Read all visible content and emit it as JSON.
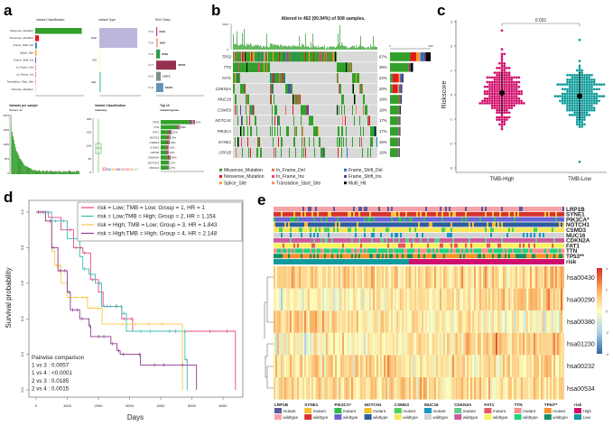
{
  "panels": {
    "a": "a",
    "b": "b",
    "c": "c",
    "d": "d",
    "e": "e"
  },
  "colors": {
    "Missense_Mutation": "#33a02c",
    "Nonsense_Mutation": "#e31a1c",
    "Splice_Site": "#ff9f1c",
    "In_Frame_Del": "#d9714e",
    "In_Frame_Ins": "#e8436f",
    "Translation_Start_Site": "#fb8a5a",
    "Frame_Shift_Del": "#1f78b4",
    "Frame_Shift_Ins": "#6a3d9a",
    "Multi_Hit": "#000000",
    "tmb_high": "#d10f6b",
    "tmb_low": "#0f9b9b",
    "km": [
      "#e8457e",
      "#3cbcb8",
      "#f7c948",
      "#8d3a8c"
    ]
  },
  "chart_data": [
    {
      "type": "bar",
      "title": "Variant Classification",
      "categories": [
        "Missense_Mutation",
        "Nonsense_Mutation",
        "Frame_Shift_Del",
        "Splice_Site",
        "Frame_Shift_Ins",
        "In_Frame_Del",
        "In_Frame_Ins",
        "Translation_Start_Site",
        "Nonstop_Mutation"
      ],
      "values": [
        86000,
        7000,
        3000,
        2500,
        1400,
        500,
        150,
        60,
        40
      ],
      "xlim": [
        0,
        90000
      ]
    },
    {
      "type": "bar",
      "title": "Variant Type",
      "categories": [
        "SNP",
        "INS",
        "DEL"
      ],
      "values": [
        86000,
        1500,
        3800
      ],
      "xlim": [
        0,
        90000
      ]
    },
    {
      "type": "bar",
      "title": "SNV Class",
      "categories": [
        "T>G",
        "T>A",
        "T>C",
        "C>T",
        "C>G",
        "C>A"
      ],
      "values": [
        2449,
        3697,
        8769,
        45255,
        10372,
        16216
      ]
    },
    {
      "type": "bar",
      "title": "Variants per sample",
      "subtitle": "Median: 92",
      "yticks": [
        "2013",
        "1510",
        "1006",
        "503",
        "0"
      ]
    },
    {
      "type": "box",
      "title": "Variant Classification",
      "subtitle": "summary",
      "yticks": [
        "200",
        "150",
        "100",
        "50",
        "0"
      ]
    },
    {
      "type": "bar",
      "title": "Top 10",
      "subtitle": "mutated genes",
      "genes": [
        "TP53",
        "TTN",
        "FAT1",
        "MUC16",
        "CSMD3",
        "SYNE1",
        "LRP1B",
        "CDKN2A",
        "NOTCH1",
        "PIK3CA"
      ],
      "labels": [
        "67%",
        "38%",
        "22%",
        "19%",
        "18%",
        "16%",
        "16%",
        "20%",
        "17%",
        "17%"
      ],
      "values": [
        67,
        38,
        22,
        19,
        18,
        16,
        16,
        20,
        17,
        17
      ]
    },
    {
      "type": "heatmap",
      "title": "Altered in 462 (90.94%) of 508 samples.",
      "top_axis": [
        "2013",
        "0"
      ],
      "side_axis": [
        "0",
        "340"
      ],
      "genes": [
        "TP53",
        "TTN",
        "FAT1",
        "CDKN2A",
        "MUC16",
        "CSMD3",
        "NOTCH1",
        "PIK3CA",
        "SYNE1",
        "LRP1B"
      ],
      "labels": [
        "67%",
        "38%",
        "22%",
        "20%",
        "19%",
        "18%",
        "17%",
        "17%",
        "16%",
        "16%"
      ],
      "values": [
        67,
        38,
        22,
        20,
        19,
        18,
        17,
        17,
        16,
        16
      ],
      "legend": [
        "Missense_Mutation",
        "Nonsense_Mutation",
        "Splice_Site",
        "In_Frame_Del",
        "In_Frame_Ins",
        "Translation_Start_Site",
        "Frame_Shift_Del",
        "Frame_Shift_Ins",
        "Multi_Hit"
      ]
    },
    {
      "type": "scatter",
      "ylabel": "Riskscore",
      "categories": [
        "TMB-High",
        "TMB-Low"
      ],
      "ylim": [
        -3,
        3
      ],
      "yticks": [
        "3",
        "2",
        "1",
        "0",
        "-1",
        "-2",
        "-3"
      ],
      "pvalue": "0.031",
      "means": [
        0.08,
        -0.05
      ],
      "sd_range": [
        [
          -0.8,
          0.95
        ],
        [
          -1.05,
          0.93
        ]
      ],
      "n": [
        250,
        258
      ],
      "extremes": [
        [
          -1.45,
          2.65
        ],
        [
          -2.8,
          2.3
        ]
      ]
    },
    {
      "type": "line",
      "xlabel": "Days",
      "ylabel": "Survival probability",
      "xlim": [
        0,
        6500
      ],
      "ylim": [
        0,
        1
      ],
      "xticks": [
        "0",
        "1000",
        "2000",
        "3000",
        "4000",
        "5000",
        "6000"
      ],
      "yticks": [
        "0.0",
        "0.2",
        "0.4",
        "0.6",
        "0.8",
        "1.0"
      ],
      "legend": [
        "risk = Low; TMB = Low;  Group = 1, HR = 1",
        "risk = Low;TMB = High;  Group = 2, HR = 1.154",
        "risk = High; TMB = Low; Group = 3, HR = 1.843",
        "risk = High;TMB = High; Group = 4, HR = 2.148"
      ],
      "pairwise": [
        "Pairwise comparison",
        "1 vs 3 : 0.0057",
        "1 vs 4 : <0.0001",
        "2 vs 3 : 0.0185",
        "2 vs 4 : 0.0015"
      ],
      "series": [
        {
          "name": "Group 1",
          "points": [
            [
              0,
              1
            ],
            [
              400,
              0.97
            ],
            [
              800,
              0.9
            ],
            [
              1200,
              0.8
            ],
            [
              1500,
              0.77
            ],
            [
              1750,
              0.62
            ],
            [
              2000,
              0.55
            ],
            [
              2150,
              0.47
            ],
            [
              2700,
              0.47
            ],
            [
              2750,
              0.4
            ],
            [
              3050,
              0.4
            ],
            [
              3100,
              0.33
            ],
            [
              6400,
              0.33
            ],
            [
              6400,
              0
            ]
          ]
        },
        {
          "name": "Group 2",
          "points": [
            [
              0,
              1
            ],
            [
              500,
              0.95
            ],
            [
              1000,
              0.85
            ],
            [
              1400,
              0.75
            ],
            [
              1500,
              0.68
            ],
            [
              1700,
              0.65
            ],
            [
              1900,
              0.6
            ],
            [
              2100,
              0.47
            ],
            [
              2700,
              0.47
            ],
            [
              2750,
              0.43
            ],
            [
              2900,
              0.33
            ],
            [
              4750,
              0.33
            ],
            [
              4780,
              0.17
            ],
            [
              4850,
              0.17
            ],
            [
              4850,
              0
            ]
          ]
        },
        {
          "name": "Group 3",
          "points": [
            [
              0,
              1
            ],
            [
              300,
              0.95
            ],
            [
              500,
              0.78
            ],
            [
              600,
              0.7
            ],
            [
              800,
              0.6
            ],
            [
              1000,
              0.52
            ],
            [
              1600,
              0.52
            ],
            [
              1650,
              0.46
            ],
            [
              2100,
              0.46
            ],
            [
              2120,
              0.37
            ],
            [
              4700,
              0.37
            ],
            [
              4700,
              0
            ]
          ]
        },
        {
          "name": "Group 4",
          "points": [
            [
              0,
              1
            ],
            [
              300,
              0.95
            ],
            [
              500,
              0.8
            ],
            [
              700,
              0.67
            ],
            [
              1000,
              0.55
            ],
            [
              1100,
              0.45
            ],
            [
              1400,
              0.4
            ],
            [
              1700,
              0.36
            ],
            [
              1750,
              0.3
            ],
            [
              2100,
              0.3
            ],
            [
              2400,
              0.26
            ],
            [
              2600,
              0.22
            ],
            [
              2700,
              0.2
            ],
            [
              3300,
              0.2
            ],
            [
              3350,
              0.14
            ],
            [
              5150,
              0.14
            ],
            [
              5150,
              0
            ]
          ]
        }
      ]
    },
    {
      "type": "heatmap",
      "annotation_rows": [
        "LRP1B",
        "SYNE1",
        "PIK3CA*",
        "NOTCH1",
        "CSMD3",
        "MUC16",
        "CDKN2A",
        "FAT1",
        "TTN",
        "TP53**",
        "risk"
      ],
      "rows": [
        "hsa00430",
        "hsa00290",
        "hsa00380",
        "hsa01230",
        "hsa00232",
        "hsa00534"
      ],
      "colorbar": [
        "4",
        "2",
        "0",
        "-2",
        "-4"
      ],
      "clim": [
        -4,
        4
      ],
      "legend": [
        {
          "name": "LRP1B",
          "a": "mutant",
          "b": "wildtype",
          "ca": "#5b5b9b",
          "cb": "#f6a3a8"
        },
        {
          "name": "SYNE1",
          "a": "mutant",
          "b": "wildtype",
          "ca": "#f6c230",
          "cb": "#d6322e"
        },
        {
          "name": "PIK3CA*",
          "a": "mutant",
          "b": "wildtype",
          "ca": "#2ebd4a",
          "cb": "#6b63d6"
        },
        {
          "name": "NOTCH1",
          "a": "mutant",
          "b": "wildtype",
          "ca": "#f4bd2a",
          "cb": "#2e5d9c"
        },
        {
          "name": "CSMD3",
          "a": "mutant",
          "b": "wildtype",
          "ca": "#4ccf5e",
          "cb": "#f8e65a"
        },
        {
          "name": "MUC16",
          "a": "mutant",
          "b": "wildtype",
          "ca": "#1798c9",
          "cb": "#d2d2d2"
        },
        {
          "name": "CDKN2A",
          "a": "mutant",
          "b": "wildtype",
          "ca": "#63c98e",
          "cb": "#c95a9c"
        },
        {
          "name": "FAT1",
          "a": "mutant",
          "b": "wildtype",
          "ca": "#e8595c",
          "cb": "#f8f35a"
        },
        {
          "name": "TTN",
          "a": "mutant",
          "b": "wildtype",
          "ca": "#f7918c",
          "cb": "#1ad67a"
        },
        {
          "name": "TP53**",
          "a": "mutant",
          "b": "wildtype",
          "ca": "#f79229",
          "cb": "#14905e"
        },
        {
          "name": "risk",
          "a": "High",
          "b": "Low",
          "ca": "#d10f6b",
          "cb": "#0f9b9b"
        }
      ]
    }
  ]
}
